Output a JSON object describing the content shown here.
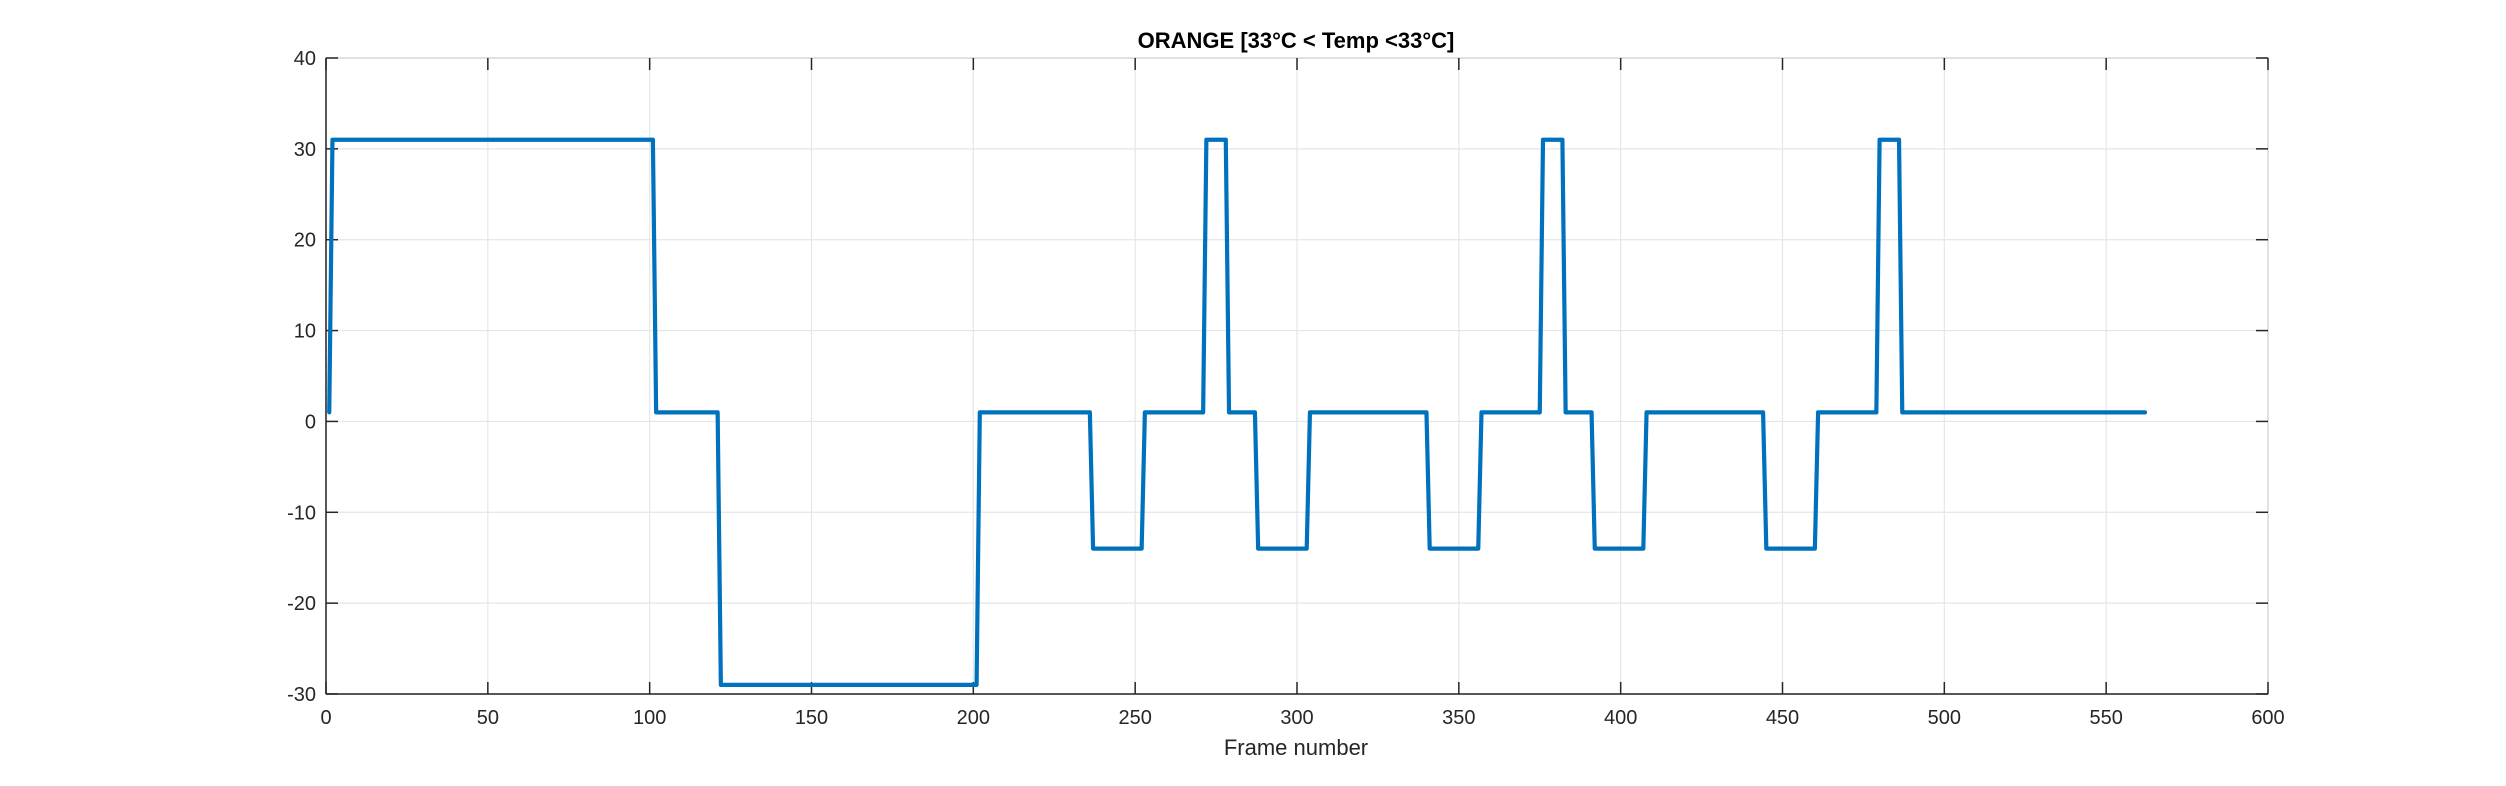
{
  "chart_data": {
    "type": "line",
    "title": "ORANGE [33°C < Temp <33°C]",
    "xlabel": "Frame number",
    "ylabel": "",
    "xlim": [
      0,
      600
    ],
    "ylim": [
      -30,
      40
    ],
    "xticks": [
      0,
      50,
      100,
      150,
      200,
      250,
      300,
      350,
      400,
      450,
      500,
      550,
      600
    ],
    "yticks": [
      -30,
      -20,
      -10,
      0,
      10,
      20,
      30,
      40
    ],
    "xtick_labels": [
      "0",
      "50",
      "100",
      "150",
      "200",
      "250",
      "300",
      "350",
      "400",
      "450",
      "500",
      "550",
      "600"
    ],
    "ytick_labels": [
      "-30",
      "-20",
      "-10",
      "0",
      "10",
      "20",
      "30",
      "40"
    ],
    "grid": true,
    "series": [
      {
        "color": "#0072BD",
        "x": [
          1,
          2,
          101,
          102,
          121,
          122,
          201,
          202,
          236,
          237,
          252,
          253,
          271,
          272,
          278,
          279,
          287,
          288,
          303,
          304,
          340,
          341,
          356,
          357,
          375,
          376,
          382,
          383,
          391,
          392,
          407,
          408,
          444,
          445,
          460,
          461,
          479,
          480,
          486,
          487,
          562
        ],
        "y": [
          1,
          31,
          31,
          1,
          1,
          -29,
          -29,
          1,
          1,
          -14,
          -14,
          1,
          1,
          31,
          31,
          1,
          1,
          -14,
          -14,
          1,
          1,
          -14,
          -14,
          1,
          1,
          31,
          31,
          1,
          1,
          -14,
          -14,
          1,
          1,
          -14,
          -14,
          1,
          1,
          31,
          31,
          1,
          1
        ]
      }
    ]
  }
}
